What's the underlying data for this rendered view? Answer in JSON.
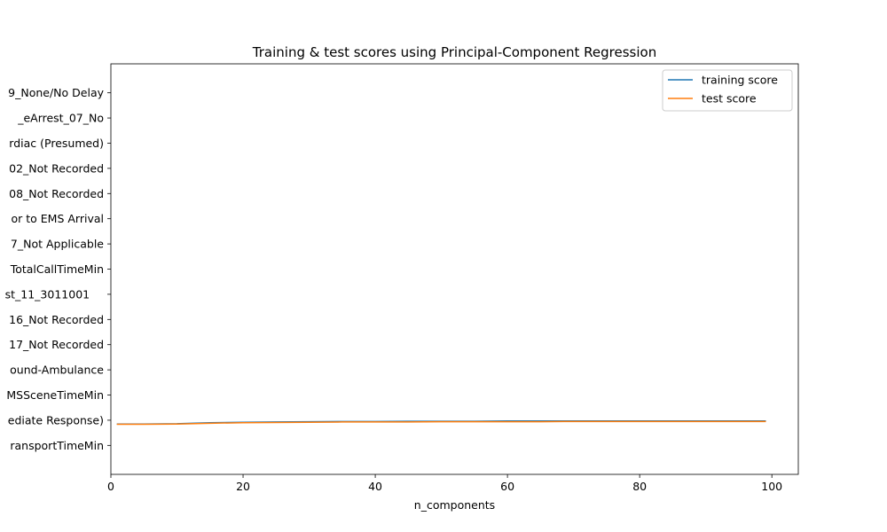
{
  "chart_data": {
    "type": "line",
    "title": "Training & test scores using Principal-Component Regression",
    "xlabel": "n_components",
    "ylabel": "",
    "xlim": [
      0,
      104
    ],
    "x_ticks": [
      0,
      20,
      40,
      60,
      80,
      100
    ],
    "y_tick_labels": [
      "9_None/No Delay",
      "_eArrest_07_No",
      "rdiac (Presumed)",
      "02_Not Recorded",
      "08_Not Recorded",
      "or to EMS Arrival",
      "7_Not Applicable",
      "TotalCallTimeMin",
      "st_11_3011001    ",
      "16_Not Recorded",
      "17_Not Recorded",
      "ound-Ambulance",
      "MSSceneTimeMin",
      "ediate Response)",
      "ransportTimeMin"
    ],
    "ylim": [
      -1.15,
      15.15
    ],
    "grid": false,
    "legend_position": "top-right",
    "series": [
      {
        "name": "training score",
        "color": "#1f77b4",
        "x": [
          1,
          5,
          10,
          15,
          20,
          25,
          30,
          35,
          40,
          45,
          50,
          55,
          60,
          65,
          70,
          75,
          80,
          85,
          90,
          95,
          99
        ],
        "y": [
          0.85,
          0.85,
          0.86,
          0.9,
          0.92,
          0.93,
          0.94,
          0.95,
          0.95,
          0.96,
          0.96,
          0.96,
          0.97,
          0.97,
          0.97,
          0.97,
          0.97,
          0.97,
          0.97,
          0.97,
          0.97
        ]
      },
      {
        "name": "test score",
        "color": "#ff7f0e",
        "x": [
          1,
          5,
          10,
          15,
          20,
          25,
          30,
          35,
          40,
          45,
          50,
          55,
          60,
          65,
          70,
          75,
          80,
          85,
          90,
          95,
          99
        ],
        "y": [
          0.84,
          0.84,
          0.85,
          0.88,
          0.9,
          0.91,
          0.92,
          0.93,
          0.93,
          0.93,
          0.94,
          0.94,
          0.94,
          0.94,
          0.95,
          0.95,
          0.95,
          0.95,
          0.95,
          0.95,
          0.95
        ]
      }
    ]
  }
}
